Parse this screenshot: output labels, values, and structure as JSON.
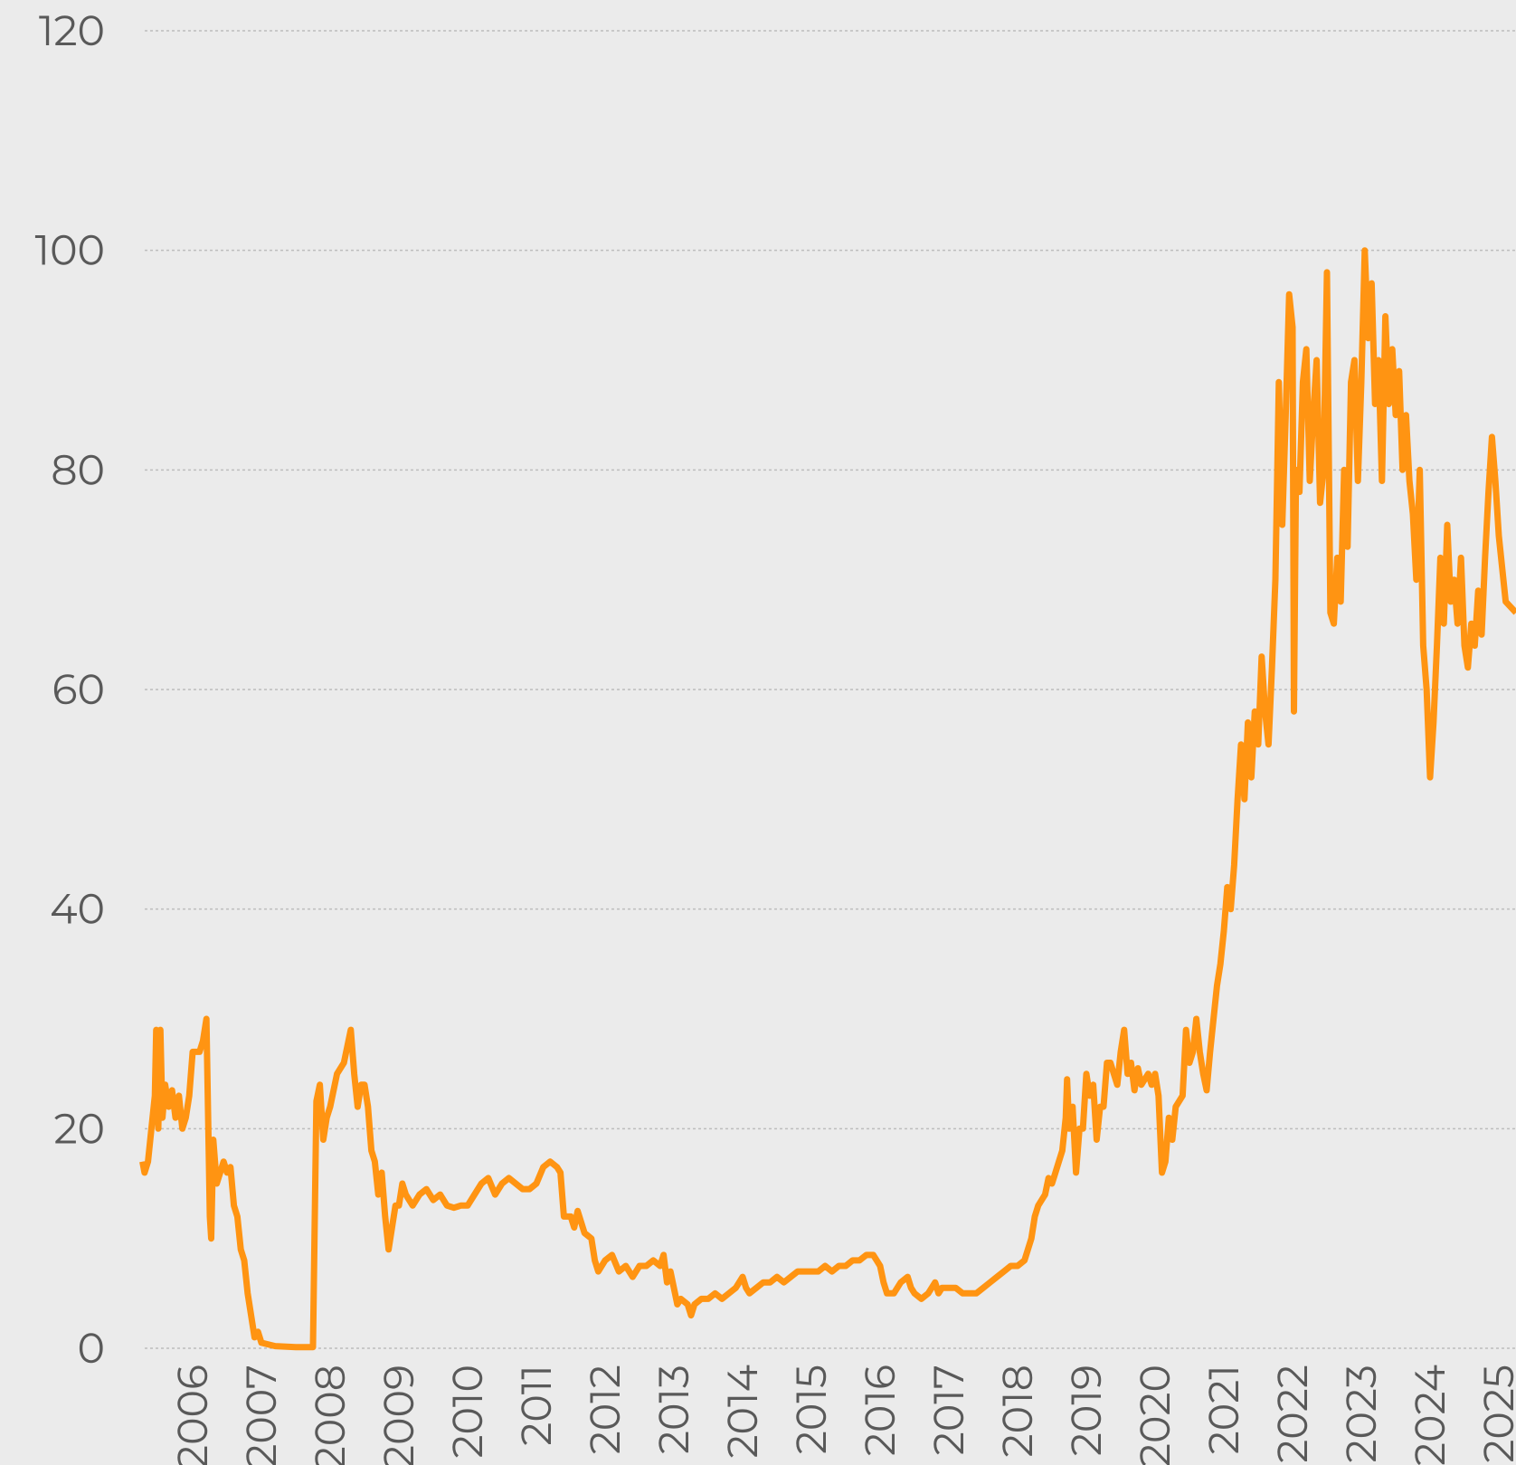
{
  "chart_data": {
    "type": "line",
    "x": [
      2005.27,
      2005.3,
      2005.35,
      2005.4,
      2005.45,
      2005.47,
      2005.5,
      2005.53,
      2005.56,
      2005.6,
      2005.65,
      2005.7,
      2005.75,
      2005.8,
      2005.85,
      2005.9,
      2005.95,
      2006.0,
      2006.05,
      2006.1,
      2006.15,
      2006.2,
      2006.25,
      2006.27,
      2006.3,
      2006.35,
      2006.4,
      2006.45,
      2006.5,
      2006.55,
      2006.6,
      2006.65,
      2006.7,
      2006.75,
      2006.8,
      2006.85,
      2006.9,
      2006.95,
      2007.0,
      2007.2,
      2007.5,
      2007.75,
      2007.8,
      2007.85,
      2007.9,
      2007.95,
      2008.0,
      2008.1,
      2008.2,
      2008.3,
      2008.35,
      2008.4,
      2008.45,
      2008.5,
      2008.55,
      2008.6,
      2008.65,
      2008.7,
      2008.75,
      2008.8,
      2008.85,
      2008.9,
      2008.95,
      2009.0,
      2009.05,
      2009.1,
      2009.2,
      2009.3,
      2009.4,
      2009.5,
      2009.6,
      2009.7,
      2009.8,
      2009.9,
      2010.0,
      2010.1,
      2010.2,
      2010.3,
      2010.4,
      2010.5,
      2010.6,
      2010.7,
      2010.8,
      2010.9,
      2011.0,
      2011.1,
      2011.2,
      2011.3,
      2011.35,
      2011.4,
      2011.5,
      2011.55,
      2011.6,
      2011.7,
      2011.8,
      2011.85,
      2011.9,
      2012.0,
      2012.1,
      2012.2,
      2012.3,
      2012.4,
      2012.5,
      2012.6,
      2012.7,
      2012.8,
      2012.85,
      2012.9,
      2012.95,
      2013.0,
      2013.05,
      2013.1,
      2013.2,
      2013.25,
      2013.3,
      2013.4,
      2013.5,
      2013.6,
      2013.7,
      2013.8,
      2013.9,
      2014.0,
      2014.05,
      2014.1,
      2014.2,
      2014.3,
      2014.4,
      2014.5,
      2014.6,
      2014.7,
      2014.8,
      2014.9,
      2015.0,
      2015.1,
      2015.2,
      2015.3,
      2015.4,
      2015.5,
      2015.6,
      2015.7,
      2015.8,
      2015.9,
      2015.95,
      2016.0,
      2016.05,
      2016.1,
      2016.2,
      2016.3,
      2016.4,
      2016.45,
      2016.5,
      2016.6,
      2016.7,
      2016.8,
      2016.85,
      2016.9,
      2017.0,
      2017.1,
      2017.2,
      2017.3,
      2017.4,
      2017.5,
      2017.6,
      2017.7,
      2017.8,
      2017.9,
      2018.0,
      2018.1,
      2018.15,
      2018.2,
      2018.25,
      2018.3,
      2018.35,
      2018.4,
      2018.45,
      2018.5,
      2018.55,
      2018.6,
      2018.65,
      2018.7,
      2018.72,
      2018.75,
      2018.8,
      2018.85,
      2018.9,
      2018.95,
      2019.0,
      2019.05,
      2019.1,
      2019.15,
      2019.2,
      2019.25,
      2019.3,
      2019.35,
      2019.4,
      2019.45,
      2019.5,
      2019.55,
      2019.6,
      2019.65,
      2019.7,
      2019.75,
      2019.8,
      2019.9,
      2019.95,
      2020.0,
      2020.05,
      2020.1,
      2020.15,
      2020.2,
      2020.25,
      2020.3,
      2020.4,
      2020.45,
      2020.5,
      2020.55,
      2020.6,
      2020.65,
      2020.7,
      2020.75,
      2020.8,
      2020.85,
      2020.9,
      2020.95,
      2021.0,
      2021.05,
      2021.1,
      2021.15,
      2021.2,
      2021.25,
      2021.3,
      2021.35,
      2021.4,
      2021.45,
      2021.5,
      2021.55,
      2021.6,
      2021.65,
      2021.7,
      2021.75,
      2021.8,
      2021.85,
      2021.9,
      2021.95,
      2022.0,
      2022.02,
      2022.05,
      2022.1,
      2022.15,
      2022.2,
      2022.25,
      2022.3,
      2022.35,
      2022.4,
      2022.45,
      2022.5,
      2022.55,
      2022.6,
      2022.65,
      2022.7,
      2022.75,
      2022.8,
      2022.85,
      2022.9,
      2022.95,
      2023.0,
      2023.05,
      2023.1,
      2023.15,
      2023.2,
      2023.25,
      2023.3,
      2023.35,
      2023.4,
      2023.45,
      2023.5,
      2023.55,
      2023.6,
      2023.65,
      2023.7,
      2023.75,
      2023.8,
      2023.85,
      2023.9,
      2023.95,
      2024.0,
      2024.05,
      2024.1,
      2024.15,
      2024.2,
      2024.25,
      2024.3,
      2024.35,
      2024.4,
      2024.45,
      2024.5,
      2024.55,
      2024.6,
      2024.65,
      2024.7,
      2024.75,
      2024.8,
      2024.85,
      2024.9,
      2024.95,
      2025.0,
      2025.05,
      2025.1,
      2025.25
    ],
    "values": [
      17,
      16,
      17,
      20,
      23,
      29,
      20,
      29,
      21,
      24,
      22,
      23.5,
      21,
      23,
      20,
      21,
      23,
      27,
      27,
      27,
      28,
      30,
      12,
      10,
      19,
      15,
      16,
      17,
      16,
      16.5,
      13,
      12,
      9,
      8,
      5,
      3,
      1,
      1.5,
      0.5,
      0.2,
      0.1,
      0.1,
      22.5,
      24,
      19,
      21,
      22,
      25,
      26,
      29,
      25,
      22,
      24,
      24,
      22,
      18,
      17,
      14,
      16,
      12,
      9,
      11,
      13,
      13,
      15,
      14,
      13,
      14,
      14.5,
      13.5,
      14,
      13,
      12.8,
      13,
      13,
      14,
      15,
      15.5,
      14,
      15,
      15.5,
      15,
      14.5,
      14.5,
      15,
      16.5,
      17,
      16.5,
      16,
      12,
      12,
      11,
      12.5,
      10.5,
      10,
      8,
      7,
      8,
      8.5,
      7,
      7.5,
      6.5,
      7.5,
      7.5,
      8,
      7.5,
      8.5,
      6,
      7,
      5.5,
      4,
      4.5,
      4,
      3,
      4,
      4.5,
      4.5,
      5,
      4.5,
      5,
      5.5,
      6.5,
      5.5,
      5,
      5.5,
      6,
      6,
      6.5,
      6,
      6.5,
      7,
      7,
      7,
      7,
      7.5,
      7,
      7.5,
      7.5,
      8,
      8,
      8.5,
      8.5,
      8,
      7.5,
      6,
      5,
      5,
      6,
      6.5,
      5.5,
      5,
      4.5,
      5,
      6,
      5,
      5.5,
      5.5,
      5.5,
      5,
      5,
      5,
      5.5,
      6,
      6.5,
      7,
      7.5,
      7.5,
      8,
      9,
      10,
      12,
      13,
      13.5,
      14,
      15.5,
      15,
      16,
      17,
      18,
      21,
      24.5,
      20,
      22,
      16,
      20,
      20,
      25,
      23,
      24,
      19,
      22,
      22,
      26,
      26,
      25,
      24,
      27,
      29,
      25,
      26,
      23.5,
      25.5,
      24,
      25,
      24,
      25,
      23,
      16,
      17,
      21,
      19,
      22,
      23,
      29,
      26,
      27,
      30,
      27,
      25,
      23.5,
      27,
      30,
      33,
      35,
      38,
      42,
      40,
      44,
      50,
      55,
      50,
      57,
      52,
      58,
      55,
      63,
      58,
      55,
      62,
      70,
      88,
      75,
      85,
      96,
      93,
      58,
      80,
      78,
      88,
      91,
      79,
      85,
      90,
      77,
      80,
      98,
      67,
      66,
      72,
      68,
      80,
      73,
      88,
      90,
      79,
      88,
      100,
      92,
      97,
      86,
      90,
      79,
      94,
      86,
      91,
      85,
      89,
      80,
      85,
      79,
      76,
      70,
      80,
      64,
      60,
      52,
      57,
      64,
      72,
      66,
      75,
      68,
      70,
      66,
      72,
      64,
      62,
      66,
      64,
      69,
      65,
      72,
      78,
      83,
      79,
      74,
      71,
      68,
      67
    ],
    "color": "#ff9412",
    "xlim": [
      2005.25,
      2025.25
    ],
    "xticks": [
      2006,
      2007,
      2008,
      2009,
      2010,
      2011,
      2012,
      2013,
      2014,
      2015,
      2016,
      2017,
      2018,
      2019,
      2020,
      2021,
      2022,
      2023,
      2024,
      2025
    ],
    "ylim": [
      0,
      120
    ],
    "yticks": [
      0,
      20,
      40,
      60,
      80,
      100,
      120
    ],
    "grid": true
  }
}
